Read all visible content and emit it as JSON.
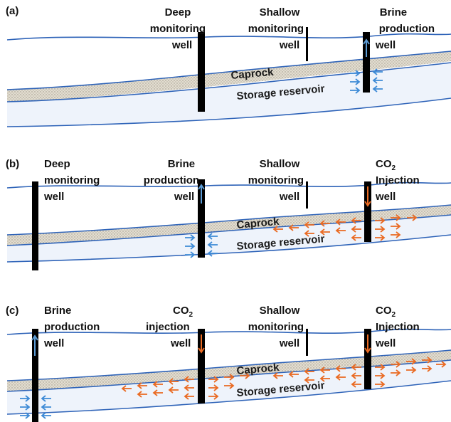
{
  "colors": {
    "boundary": "#2e63b8",
    "reservoir_fill": "#eef3fb",
    "caprock_fill": "#d9d4c8",
    "well": "#000000",
    "brine_arrow": "#3d8ad6",
    "co2_arrow": "#ea6a22",
    "up_arrow_fill": "#5b9bd5"
  },
  "panels": [
    {
      "tag": "(a)",
      "wells": [
        {
          "line1": "Deep",
          "line2": "monitoring",
          "line3": "well"
        },
        {
          "line1": "Shallow",
          "line2": "monitoring",
          "line3": "well"
        },
        {
          "line1": "Brine",
          "line2": "production",
          "line3": "well"
        }
      ],
      "caprock": "Caprock",
      "reservoir": "Storage reservoir"
    },
    {
      "tag": "(b)",
      "wells": [
        {
          "line1": "Deep",
          "line2": "monitoring",
          "line3": "well"
        },
        {
          "line1": "Brine",
          "line2": "production",
          "line3": "well"
        },
        {
          "line1": "Shallow",
          "line2": "monitoring",
          "line3": "well"
        },
        {
          "line1": "CO",
          "sub": "2",
          "line2": "Injection",
          "line3": "well"
        }
      ],
      "caprock": "Caprock",
      "reservoir": "Storage reservoir"
    },
    {
      "tag": "(c)",
      "wells": [
        {
          "line1": "Brine",
          "line2": "production",
          "line3": "well"
        },
        {
          "line1": "CO",
          "sub": "2",
          "line2": "injection",
          "line3": "well"
        },
        {
          "line1": "Shallow",
          "line2": "monitoring",
          "line3": "well"
        },
        {
          "line1": "CO",
          "sub": "2",
          "line2": "Injection",
          "line3": "well"
        }
      ],
      "caprock": "Caprock",
      "reservoir": "Storage reservoir"
    }
  ]
}
